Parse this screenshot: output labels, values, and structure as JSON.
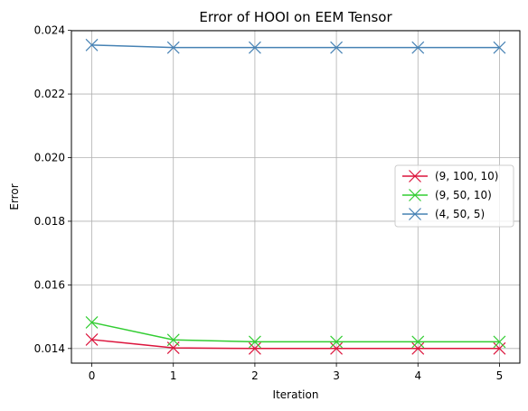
{
  "chart_data": {
    "type": "line",
    "title": "Error of HOOI on EEM Tensor",
    "xlabel": "Iteration",
    "ylabel": "Error",
    "x": [
      0,
      1,
      2,
      3,
      4,
      5
    ],
    "xlim": [
      -0.25,
      5.25
    ],
    "ylim": [
      0.01354,
      0.02399
    ],
    "xticks": [
      "0",
      "1",
      "2",
      "3",
      "4",
      "5"
    ],
    "yticks": [
      "0.014",
      "0.016",
      "0.018",
      "0.020",
      "0.022",
      "0.024"
    ],
    "grid": true,
    "legend_position": "center-right",
    "marker": "x",
    "series": [
      {
        "name": "(9, 100, 10)",
        "color": "#dc143c",
        "values": [
          0.01428,
          0.01402,
          0.014,
          0.014,
          0.014,
          0.014
        ]
      },
      {
        "name": "(9, 50, 10)",
        "color": "#32cd32",
        "values": [
          0.01482,
          0.01427,
          0.01421,
          0.01421,
          0.01421,
          0.01421
        ]
      },
      {
        "name": "(4, 50, 5)",
        "color": "#4682b4",
        "values": [
          0.02354,
          0.02346,
          0.02346,
          0.02346,
          0.02346,
          0.02346
        ]
      }
    ]
  }
}
